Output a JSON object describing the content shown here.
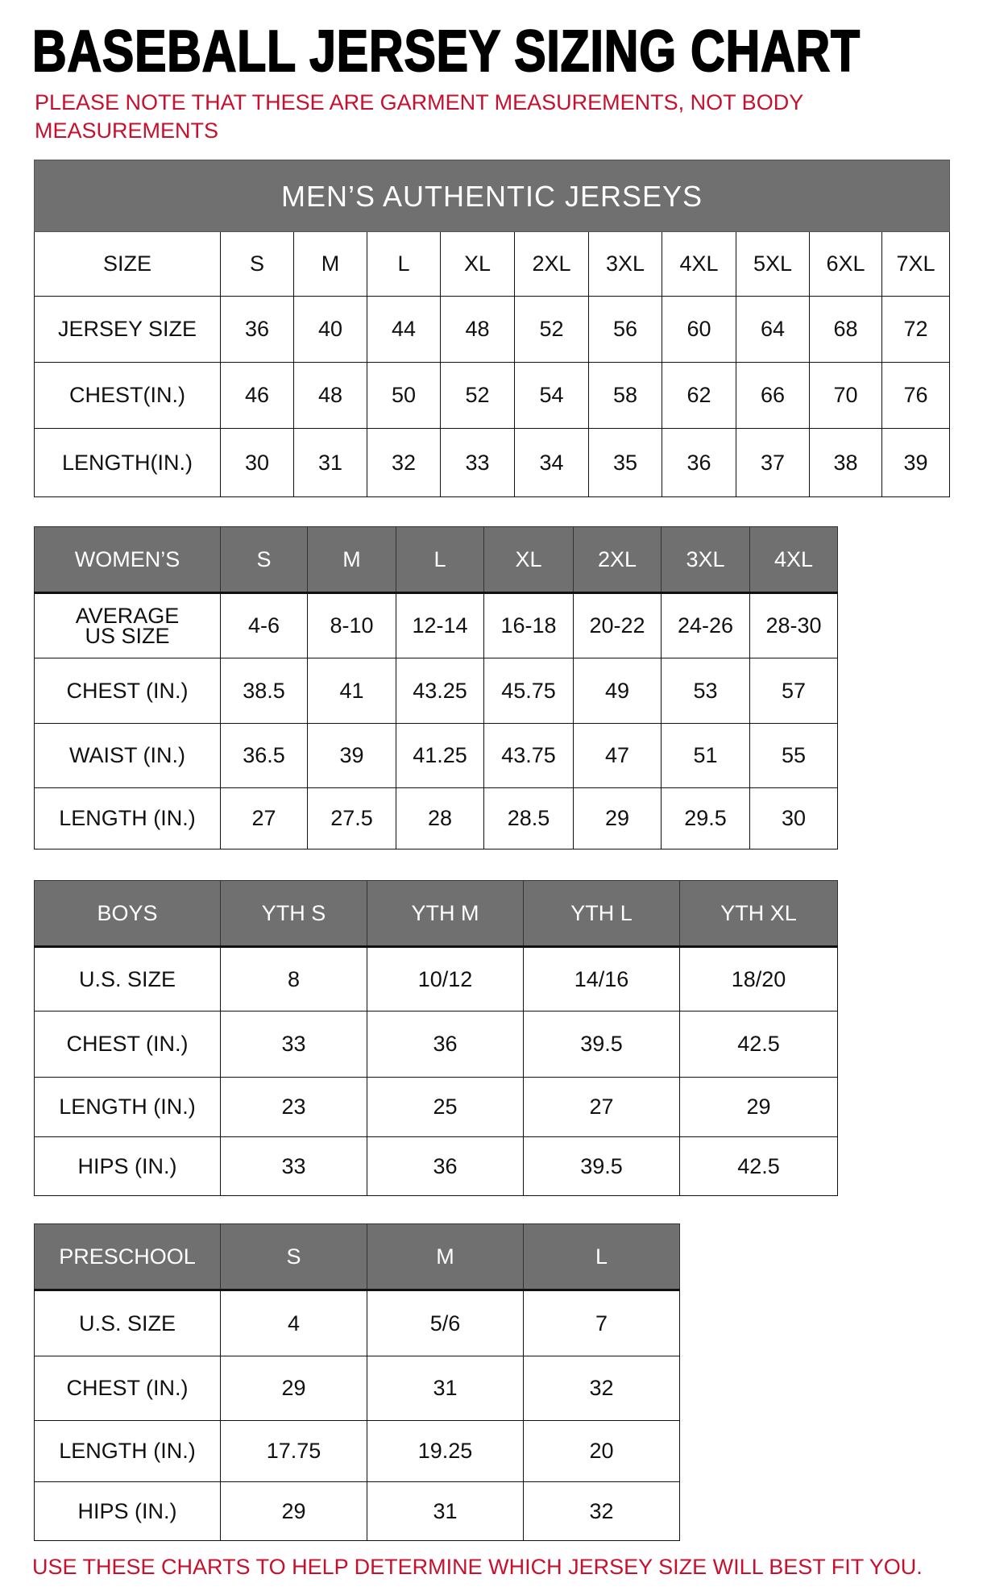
{
  "title": "BASEBALL JERSEY SIZING CHART",
  "note": "PLEASE NOTE THAT THESE ARE GARMENT MEASUREMENTS, NOT BODY MEASUREMENTS",
  "footer": "USE THESE CHARTS TO HELP DETERMINE WHICH JERSEY SIZE WILL BEST FIT YOU.",
  "colors": {
    "header_bg": "#707070",
    "accent_red": "#c8102e"
  },
  "tables": [
    {
      "id": "mens",
      "banner": "MEN’S AUTHENTIC JERSEYS",
      "header": [
        "SIZE",
        "S",
        "M",
        "L",
        "XL",
        "2XL",
        "3XL",
        "4XL",
        "5XL",
        "6XL",
        "7XL"
      ],
      "header_style": "plain",
      "rows": [
        [
          "JERSEY SIZE",
          "36",
          "40",
          "44",
          "48",
          "52",
          "56",
          "60",
          "64",
          "68",
          "72"
        ],
        [
          "CHEST(IN.)",
          "46",
          "48",
          "50",
          "52",
          "54",
          "58",
          "62",
          "66",
          "70",
          "76"
        ],
        [
          "LENGTH(IN.)",
          "30",
          "31",
          "32",
          "33",
          "34",
          "35",
          "36",
          "37",
          "38",
          "39"
        ]
      ]
    },
    {
      "id": "womens",
      "header": [
        "WOMEN’S",
        "S",
        "M",
        "L",
        "XL",
        "2XL",
        "3XL",
        "4XL"
      ],
      "rows": [
        [
          "AVERAGE US SIZE",
          "4-6",
          "8-10",
          "12-14",
          "16-18",
          "20-22",
          "24-26",
          "28-30"
        ],
        [
          "CHEST (IN.)",
          "38.5",
          "41",
          "43.25",
          "45.75",
          "49",
          "53",
          "57"
        ],
        [
          "WAIST (IN.)",
          "36.5",
          "39",
          "41.25",
          "43.75",
          "47",
          "51",
          "55"
        ],
        [
          "LENGTH (IN.)",
          "27",
          "27.5",
          "28",
          "28.5",
          "29",
          "29.5",
          "30"
        ]
      ]
    },
    {
      "id": "boys",
      "header": [
        "BOYS",
        "YTH S",
        "YTH M",
        "YTH L",
        "YTH XL"
      ],
      "rows": [
        [
          "U.S. SIZE",
          "8",
          "10/12",
          "14/16",
          "18/20"
        ],
        [
          "CHEST (IN.)",
          "33",
          "36",
          "39.5",
          "42.5"
        ],
        [
          "LENGTH (IN.)",
          "23",
          "25",
          "27",
          "29"
        ],
        [
          "HIPS (IN.)",
          "33",
          "36",
          "39.5",
          "42.5"
        ]
      ]
    },
    {
      "id": "preschool",
      "header": [
        "PRESCHOOL",
        "S",
        "M",
        "L"
      ],
      "rows": [
        [
          "U.S. SIZE",
          "4",
          "5/6",
          "7"
        ],
        [
          "CHEST (IN.)",
          "29",
          "31",
          "32"
        ],
        [
          "LENGTH (IN.)",
          "17.75",
          "19.25",
          "20"
        ],
        [
          "HIPS (IN.)",
          "29",
          "31",
          "32"
        ]
      ]
    }
  ]
}
